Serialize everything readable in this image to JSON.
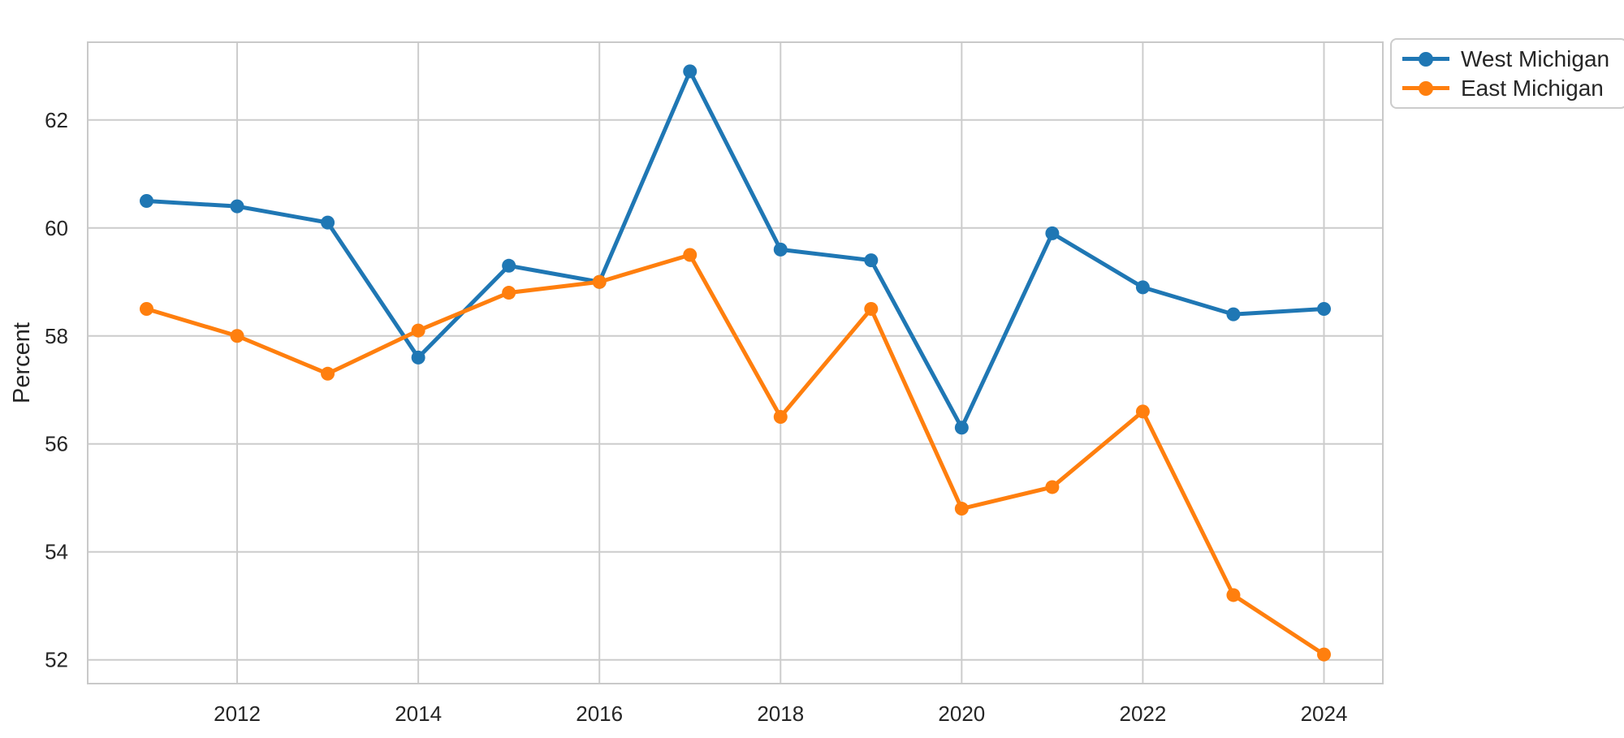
{
  "figure": {
    "background": "#ffffff"
  },
  "chart_data": {
    "type": "line",
    "title": "",
    "xlabel": "",
    "ylabel": "Percent",
    "x": [
      2011,
      2012,
      2013,
      2014,
      2015,
      2016,
      2017,
      2018,
      2019,
      2020,
      2021,
      2022,
      2023,
      2024
    ],
    "series": [
      {
        "name": "West Michigan",
        "color": "#1f77b4",
        "values": [
          60.5,
          60.4,
          60.1,
          57.6,
          59.3,
          59.0,
          62.9,
          59.6,
          59.4,
          56.3,
          59.9,
          58.9,
          58.4,
          58.5
        ]
      },
      {
        "name": "East Michigan",
        "color": "#ff7f0e",
        "values": [
          58.5,
          58.0,
          57.3,
          58.1,
          58.8,
          59.0,
          59.5,
          56.5,
          58.5,
          54.8,
          55.2,
          56.6,
          53.2,
          52.1
        ]
      }
    ],
    "xticks": [
      2012,
      2014,
      2016,
      2018,
      2020,
      2022,
      2024
    ],
    "yticks": [
      52,
      54,
      56,
      58,
      60,
      62
    ],
    "xlim": [
      2010.35,
      2024.65
    ],
    "ylim": [
      51.56,
      63.44
    ],
    "grid": true,
    "legend_position": "upper right outside",
    "marker": "circle",
    "colors": {
      "grid": "#cccccc",
      "spine": "#c9c9c9",
      "tick_label": "#262626",
      "axis_label": "#262626"
    }
  }
}
